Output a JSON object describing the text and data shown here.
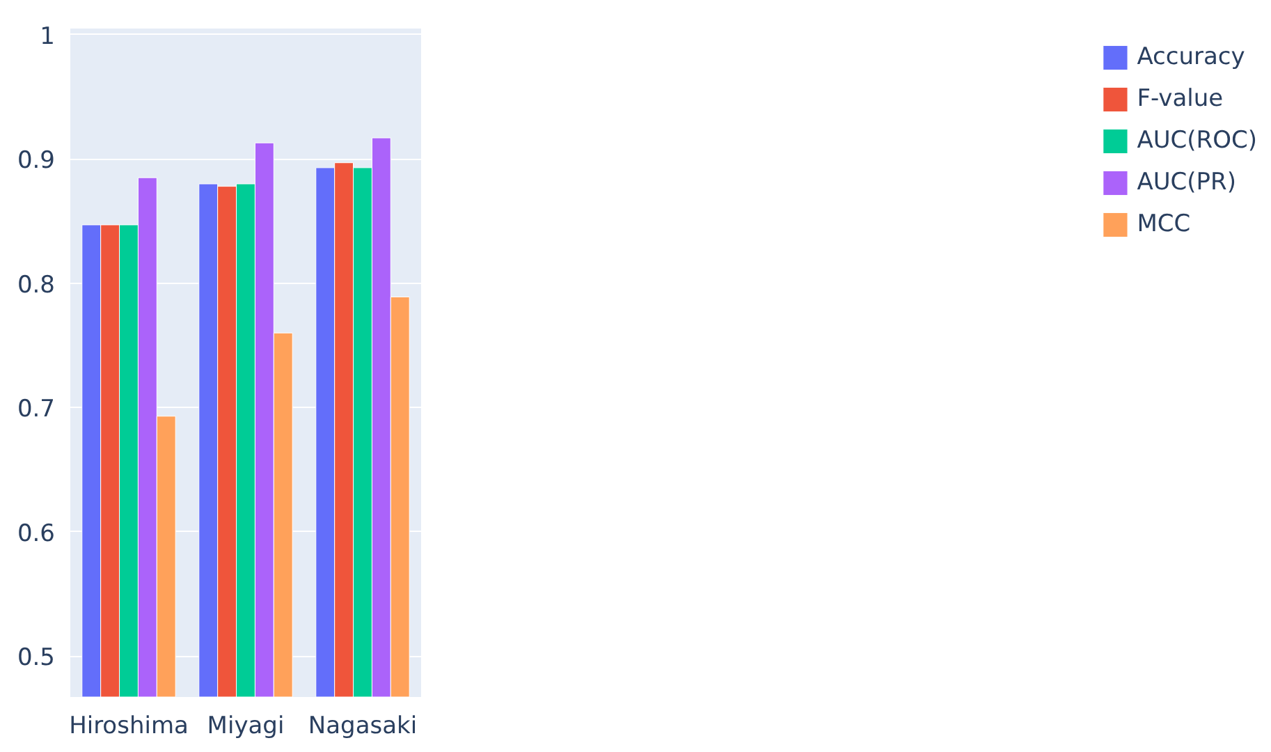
{
  "chart_data": {
    "type": "bar",
    "categories": [
      "Hiroshima",
      "Miyagi",
      "Nagasaki"
    ],
    "series": [
      {
        "name": "Accuracy",
        "color": "#636efa",
        "values": [
          0.847,
          0.88,
          0.893
        ]
      },
      {
        "name": "F-value",
        "color": "#ef553b",
        "values": [
          0.847,
          0.878,
          0.897
        ]
      },
      {
        "name": "AUC(ROC)",
        "color": "#00cc96",
        "values": [
          0.847,
          0.88,
          0.893
        ]
      },
      {
        "name": "AUC(PR)",
        "color": "#ab63fa",
        "values": [
          0.885,
          0.913,
          0.917
        ]
      },
      {
        "name": "MCC",
        "color": "#ffa15a",
        "values": [
          0.693,
          0.76,
          0.789
        ]
      }
    ],
    "ylim": [
      0.467,
      1.005
    ],
    "yticks": [
      0.5,
      0.6,
      0.7,
      0.8,
      0.9,
      1
    ],
    "grid": "y",
    "legend": "right"
  }
}
